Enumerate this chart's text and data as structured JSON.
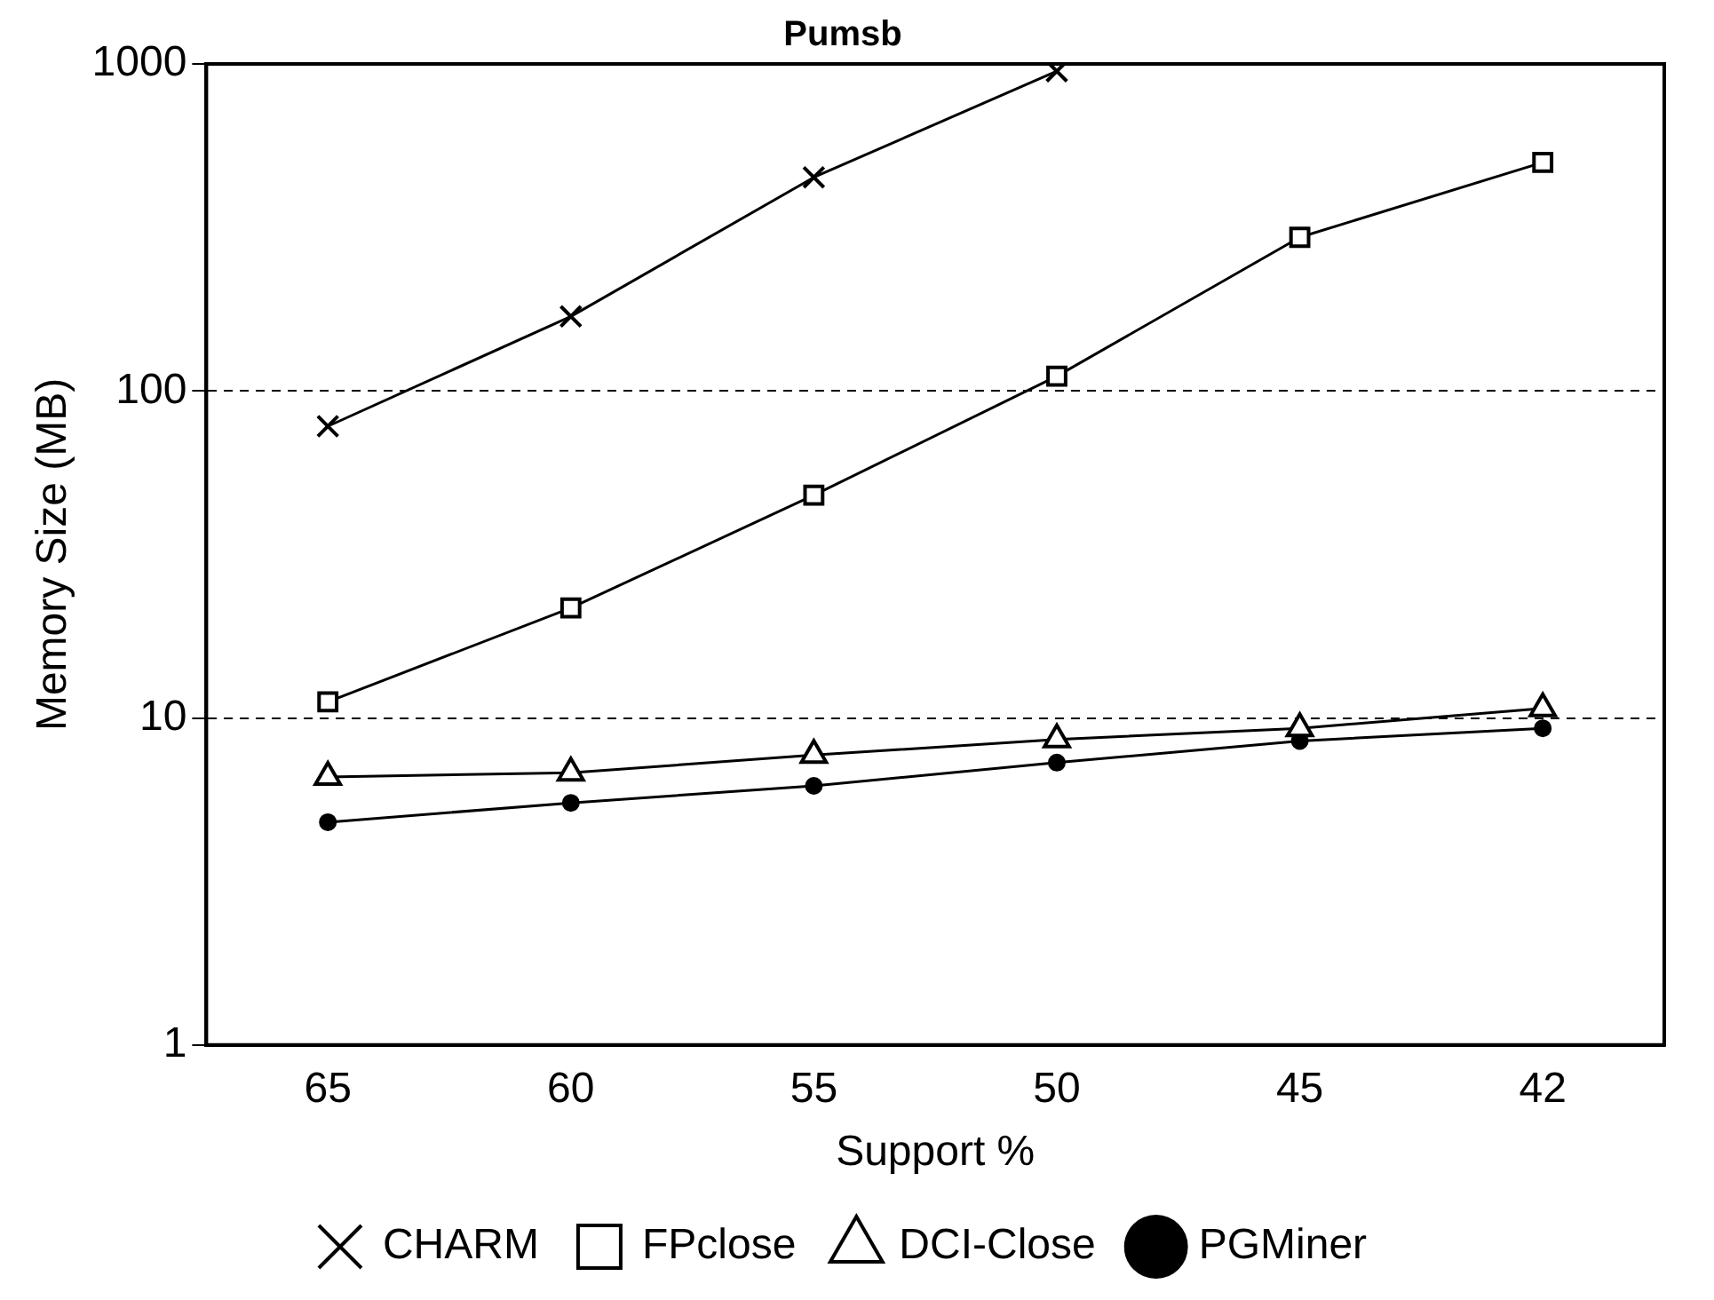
{
  "chart_data": {
    "type": "line",
    "title": "Pumsb",
    "xlabel": "Support %",
    "ylabel": "Memory Size (MB)",
    "categories": [
      "65",
      "60",
      "55",
      "50",
      "45",
      "42"
    ],
    "series": [
      {
        "name": "CHARM",
        "color": "#000000",
        "marker": "cross",
        "values": [
          78,
          169,
          450,
          950,
          null,
          null
        ]
      },
      {
        "name": "FPclose",
        "color": "#000000",
        "marker": "square",
        "values": [
          11.2,
          21.7,
          48,
          111,
          295,
          500
        ]
      },
      {
        "name": "DCI-Close",
        "color": "#000000",
        "marker": "triangle",
        "values": [
          6.6,
          6.8,
          7.7,
          8.6,
          9.3,
          10.7
        ]
      },
      {
        "name": "PGMiner",
        "color": "#000000",
        "marker": "circle",
        "values": [
          4.8,
          5.5,
          6.2,
          7.3,
          8.5,
          9.3
        ]
      }
    ],
    "log": "y",
    "ylim": [
      1,
      1000
    ],
    "yticks": [
      1,
      10,
      100,
      1000
    ],
    "grid": "y",
    "legend": "bottom"
  }
}
